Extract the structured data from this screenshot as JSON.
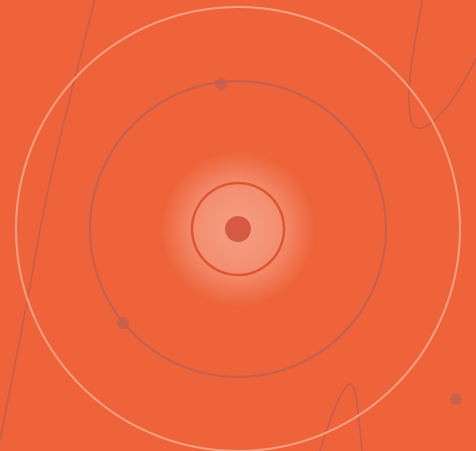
{
  "colors": {
    "background": "#ee6339",
    "outer_ring": "#f6a184",
    "middle_ring": "#c4604f",
    "inner_ring": "#de5630",
    "center_dot": "#d65a43",
    "glow": "#ffffff",
    "dots": "#c4604f",
    "curves": "#bd5e4d"
  }
}
